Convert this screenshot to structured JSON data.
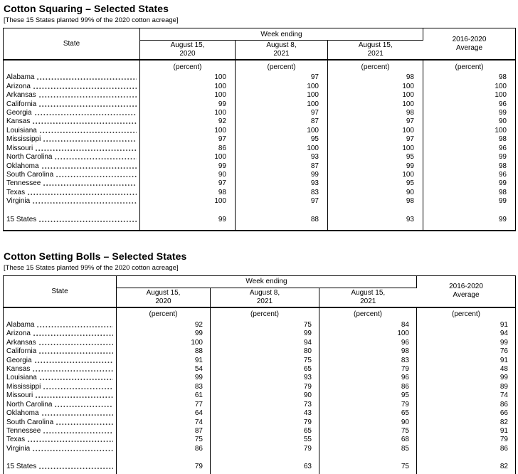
{
  "tables": [
    {
      "title": "Cotton Squaring – Selected States",
      "subtitle": "[These 15 States planted 99% of the 2020 cotton acreage]",
      "header": {
        "state_label": "State",
        "week_ending_label": "Week ending",
        "date_columns": [
          "August 15,\n2020",
          "August 8,\n2021",
          "August 15,\n2021"
        ],
        "average_label": "2016-2020\nAverage",
        "unit_label": "(percent)"
      },
      "rows": [
        {
          "state": "Alabama",
          "values": [
            100,
            97,
            98,
            98
          ]
        },
        {
          "state": "Arizona",
          "values": [
            100,
            100,
            100,
            100
          ]
        },
        {
          "state": "Arkansas",
          "values": [
            100,
            100,
            100,
            100
          ]
        },
        {
          "state": "California",
          "values": [
            99,
            100,
            100,
            96
          ]
        },
        {
          "state": "Georgia",
          "values": [
            100,
            97,
            98,
            99
          ]
        },
        {
          "state": "Kansas",
          "values": [
            92,
            87,
            97,
            90
          ]
        },
        {
          "state": "Louisiana",
          "values": [
            100,
            100,
            100,
            100
          ]
        },
        {
          "state": "Mississippi",
          "values": [
            97,
            95,
            97,
            98
          ]
        },
        {
          "state": "Missouri",
          "values": [
            86,
            100,
            100,
            96
          ]
        },
        {
          "state": "North Carolina",
          "values": [
            100,
            93,
            95,
            99
          ]
        },
        {
          "state": "Oklahoma",
          "values": [
            99,
            87,
            99,
            98
          ]
        },
        {
          "state": "South Carolina",
          "values": [
            90,
            99,
            100,
            96
          ]
        },
        {
          "state": "Tennessee",
          "values": [
            97,
            93,
            95,
            99
          ]
        },
        {
          "state": "Texas",
          "values": [
            98,
            83,
            90,
            98
          ]
        },
        {
          "state": "Virginia",
          "values": [
            100,
            97,
            98,
            99
          ]
        }
      ],
      "total_row": {
        "state": "15 States",
        "values": [
          99,
          88,
          93,
          99
        ]
      }
    },
    {
      "title": "Cotton Setting Bolls – Selected States",
      "subtitle": "[These 15 States planted 99% of the 2020 cotton acreage]",
      "header": {
        "state_label": "State",
        "week_ending_label": "Week ending",
        "date_columns": [
          "August 15,\n2020",
          "August 8,\n2021",
          "August 15,\n2021"
        ],
        "average_label": "2016-2020\nAverage",
        "unit_label": "(percent)"
      },
      "rows": [
        {
          "state": "Alabama",
          "values": [
            92,
            75,
            84,
            91
          ]
        },
        {
          "state": "Arizona",
          "values": [
            99,
            99,
            100,
            94
          ]
        },
        {
          "state": "Arkansas",
          "values": [
            100,
            94,
            96,
            99
          ]
        },
        {
          "state": "California",
          "values": [
            88,
            80,
            98,
            76
          ]
        },
        {
          "state": "Georgia",
          "values": [
            91,
            75,
            83,
            91
          ]
        },
        {
          "state": "Kansas",
          "values": [
            54,
            65,
            79,
            48
          ]
        },
        {
          "state": "Louisiana",
          "values": [
            99,
            93,
            96,
            99
          ]
        },
        {
          "state": "Mississippi",
          "values": [
            83,
            79,
            86,
            89
          ]
        },
        {
          "state": "Missouri",
          "values": [
            61,
            90,
            95,
            74
          ]
        },
        {
          "state": "North Carolina",
          "values": [
            77,
            73,
            79,
            86
          ]
        },
        {
          "state": "Oklahoma",
          "values": [
            64,
            43,
            65,
            66
          ]
        },
        {
          "state": "South Carolina",
          "values": [
            74,
            79,
            90,
            82
          ]
        },
        {
          "state": "Tennessee",
          "values": [
            87,
            65,
            75,
            91
          ]
        },
        {
          "state": "Texas",
          "values": [
            75,
            55,
            68,
            79
          ]
        },
        {
          "state": "Virginia",
          "values": [
            86,
            79,
            85,
            86
          ]
        }
      ],
      "total_row": {
        "state": "15 States",
        "values": [
          79,
          63,
          75,
          82
        ]
      }
    }
  ]
}
